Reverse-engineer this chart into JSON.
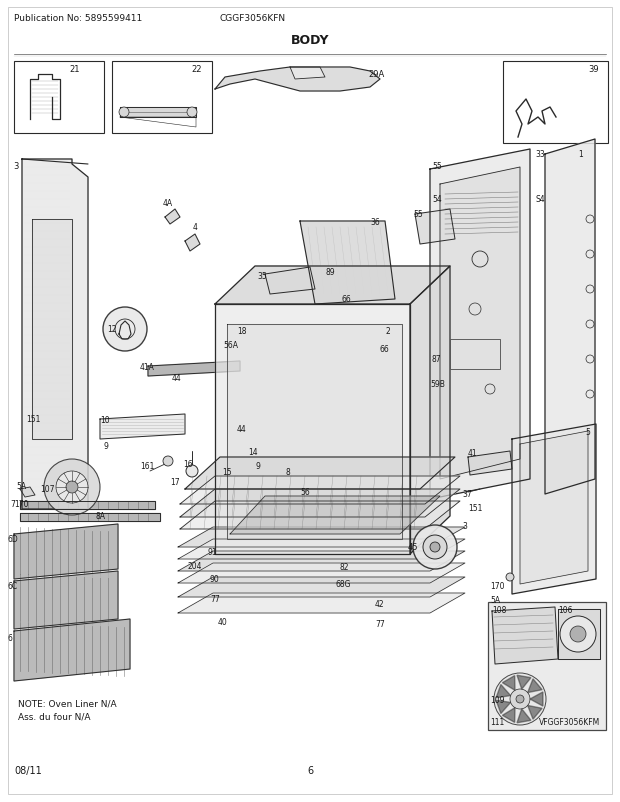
{
  "title": "BODY",
  "pub_no": "Publication No: 5895599411",
  "model": "CGGF3056KFN",
  "date": "08/11",
  "page": "6",
  "note_line1": "NOTE: Oven Liner N/A",
  "note_line2": "Ass. du four N/A",
  "vfggf_label": "VFGGF3056KFM",
  "bg_color": "#ffffff",
  "tc": "#1a1a1a",
  "dc": "#2a2a2a",
  "lc": "#555555",
  "gray1": "#c8c8c8",
  "gray2": "#d8d8d8",
  "gray3": "#e8e8e8",
  "gray4": "#b0b0b0",
  "gray5": "#a0a0a0"
}
